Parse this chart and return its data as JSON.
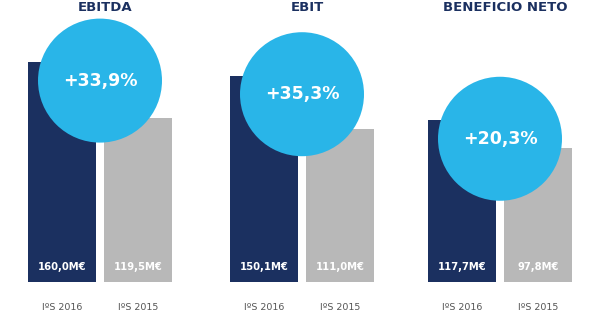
{
  "groups": [
    {
      "title": "EBITDA",
      "pct_change": "+33,9%",
      "val_2016": 160.0,
      "val_2015": 119.5,
      "label_2016": "160,0M€",
      "label_2015": "119,5M€"
    },
    {
      "title": "EBIT",
      "pct_change": "+35,3%",
      "val_2016": 150.1,
      "val_2015": 111.0,
      "label_2016": "150,1M€",
      "label_2015": "111,0M€"
    },
    {
      "title": "BENEFICIO NETO",
      "pct_change": "+20,3%",
      "val_2016": 117.7,
      "val_2015": 97.8,
      "label_2016": "117,7M€",
      "label_2015": "97,8M€"
    }
  ],
  "color_2016": "#1b3060",
  "color_2015": "#b8b8b8",
  "color_circle": "#29b5e8",
  "color_bg": "#ffffff",
  "color_title": "#1b3060",
  "color_xlabel": "#555555",
  "xlabel_2016": "IºS 2016",
  "xlabel_2015": "IºS 2015"
}
